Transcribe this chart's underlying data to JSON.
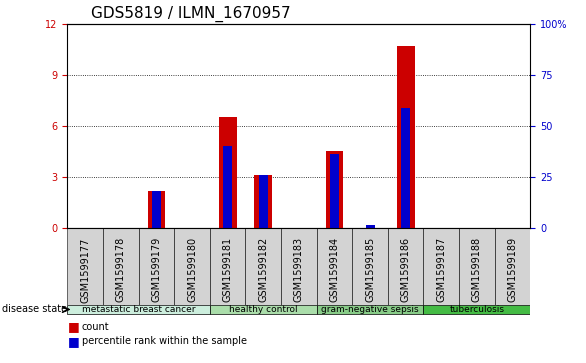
{
  "title": "GDS5819 / ILMN_1670957",
  "samples": [
    "GSM1599177",
    "GSM1599178",
    "GSM1599179",
    "GSM1599180",
    "GSM1599181",
    "GSM1599182",
    "GSM1599183",
    "GSM1599184",
    "GSM1599185",
    "GSM1599186",
    "GSM1599187",
    "GSM1599188",
    "GSM1599189"
  ],
  "count_values": [
    0,
    0,
    2.2,
    0,
    6.5,
    3.1,
    0,
    4.5,
    0,
    10.7,
    0,
    0,
    0
  ],
  "percentile_values": [
    0,
    0,
    18,
    0,
    40,
    26,
    0,
    36,
    1.5,
    58.5,
    0,
    0,
    0
  ],
  "ylim_left": [
    0,
    12
  ],
  "ylim_right": [
    0,
    100
  ],
  "yticks_left": [
    0,
    3,
    6,
    9,
    12
  ],
  "yticks_right": [
    0,
    25,
    50,
    75,
    100
  ],
  "disease_groups": [
    {
      "label": "metastatic breast cancer",
      "start": 0,
      "end": 3,
      "color": "#cceedd"
    },
    {
      "label": "healthy control",
      "start": 4,
      "end": 6,
      "color": "#aaddaa"
    },
    {
      "label": "gram-negative sepsis",
      "start": 7,
      "end": 9,
      "color": "#88cc88"
    },
    {
      "label": "tuberculosis",
      "start": 10,
      "end": 12,
      "color": "#44bb44"
    }
  ],
  "bar_color_red": "#cc0000",
  "bar_color_blue": "#0000cc",
  "bar_width": 0.5,
  "blue_bar_width": 0.25,
  "tick_color_left": "#cc0000",
  "tick_color_right": "#0000cc",
  "title_fontsize": 11,
  "tick_fontsize": 7,
  "label_fontsize": 7,
  "bg_color_plot": "#ffffff",
  "bg_color_xtick": "#d3d3d3",
  "disease_state_label": "disease state",
  "legend_count": "count",
  "legend_percentile": "percentile rank within the sample"
}
